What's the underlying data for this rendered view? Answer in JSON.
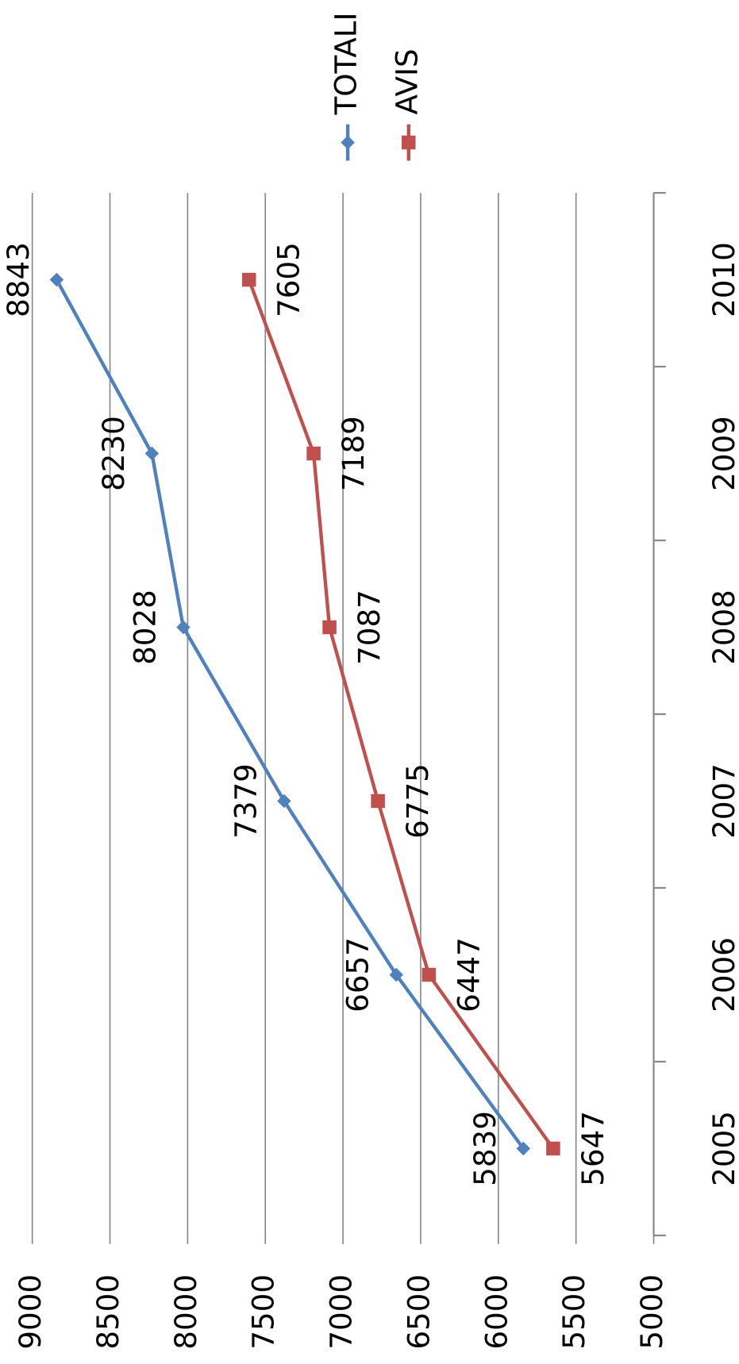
{
  "chart_data": {
    "type": "line",
    "categories": [
      "2005",
      "2006",
      "2007",
      "2008",
      "2009",
      "2010"
    ],
    "series": [
      {
        "name": "TOTALI",
        "color": "#4f81bd",
        "values": [
          5839,
          6657,
          7379,
          8028,
          8230,
          8843
        ]
      },
      {
        "name": "AVIS",
        "color": "#c0504d",
        "values": [
          5647,
          6447,
          6775,
          7087,
          7189,
          7605
        ]
      }
    ],
    "ylim": [
      5000,
      9000
    ],
    "yticks": [
      5000,
      5500,
      6000,
      6500,
      7000,
      7500,
      8000,
      8500,
      9000
    ],
    "grid": true,
    "legend": "top"
  }
}
